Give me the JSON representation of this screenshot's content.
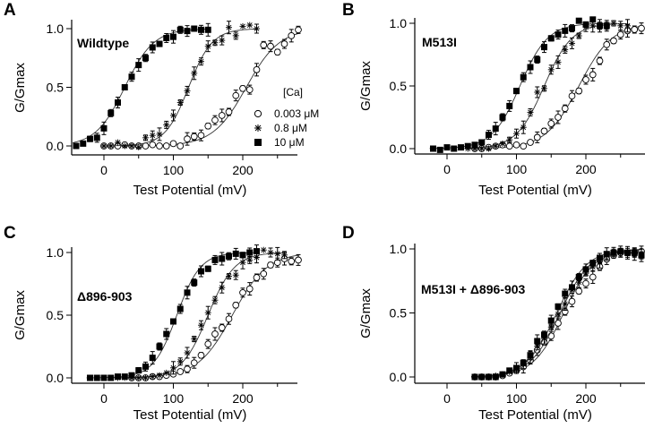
{
  "figure": {
    "legend": {
      "title": "[Ca]",
      "entries": [
        {
          "marker": "open-circle",
          "label": "0.003 μM"
        },
        {
          "marker": "asterisk",
          "label": "0.8 μM"
        },
        {
          "marker": "filled-square",
          "label": "10 μM"
        }
      ]
    }
  },
  "chart_data": [
    {
      "panel": "A",
      "type": "scatter",
      "title": "Wildtype",
      "xlabel": "Test Potential (mV)",
      "ylabel": "G/Gmax",
      "xlim": [
        -45,
        280
      ],
      "ylim": [
        0.0,
        1.0
      ],
      "xticks": [
        0,
        100,
        200
      ],
      "xtick_labels": [
        "0",
        "100",
        "200"
      ],
      "minor_xticks": [
        50,
        150,
        250
      ],
      "yticks": [
        0.0,
        0.5,
        1.0
      ],
      "ytick_labels": [
        "0.0",
        "0.5",
        "1.0"
      ],
      "legend": "right",
      "series": [
        {
          "name": "0.003 μM",
          "marker": "open-circle",
          "fit_v50": 205,
          "fit_k": 24,
          "x": [
            0,
            10,
            20,
            30,
            40,
            50,
            60,
            70,
            80,
            90,
            100,
            110,
            120,
            130,
            140,
            150,
            160,
            170,
            180,
            190,
            200,
            210,
            220,
            230,
            240,
            250,
            260,
            270,
            280
          ],
          "y": [
            0.0,
            0.0,
            0.0,
            0.01,
            0.0,
            0.0,
            0.0,
            0.01,
            0.0,
            0.0,
            0.02,
            0.0,
            0.06,
            0.08,
            0.09,
            0.17,
            0.22,
            0.26,
            0.29,
            0.43,
            0.49,
            0.48,
            0.65,
            0.86,
            0.85,
            0.8,
            0.87,
            0.94,
            0.99
          ]
        },
        {
          "name": "0.8 μM",
          "marker": "asterisk",
          "fit_v50": 122,
          "fit_k": 17,
          "x": [
            0,
            10,
            20,
            30,
            40,
            50,
            60,
            70,
            80,
            90,
            100,
            110,
            120,
            130,
            140,
            150,
            160,
            170,
            180,
            190,
            200,
            210,
            220
          ],
          "y": [
            0.0,
            0.0,
            0.03,
            0.0,
            0.0,
            -0.01,
            0.07,
            0.09,
            0.1,
            0.18,
            0.26,
            0.37,
            0.47,
            0.62,
            0.72,
            0.85,
            0.88,
            0.9,
            1.01,
            0.94,
            1.02,
            1.03,
            1.0
          ]
        },
        {
          "name": "10 μM",
          "marker": "filled-square",
          "fit_v50": 30,
          "fit_k": 21,
          "x": [
            -40,
            -30,
            -20,
            -10,
            0,
            10,
            20,
            30,
            40,
            50,
            60,
            70,
            80,
            90,
            100,
            110,
            120,
            130,
            140,
            150
          ],
          "y": [
            0.0,
            0.02,
            0.06,
            0.07,
            0.15,
            0.28,
            0.37,
            0.5,
            0.59,
            0.69,
            0.75,
            0.84,
            0.87,
            0.92,
            0.93,
            0.99,
            0.98,
            1.0,
            0.99,
            0.99
          ]
        }
      ]
    },
    {
      "panel": "B",
      "type": "scatter",
      "title": "M513I",
      "xlabel": "Test Potential (mV)",
      "ylabel": "G/Gmax",
      "xlim": [
        -45,
        280
      ],
      "ylim": [
        0.0,
        1.0
      ],
      "xticks": [
        0,
        100,
        200
      ],
      "xtick_labels": [
        "0",
        "100",
        "200"
      ],
      "minor_xticks": [
        50,
        150,
        250
      ],
      "yticks": [
        0.0,
        0.5,
        1.0
      ],
      "ytick_labels": [
        "0.0",
        "0.5",
        "1.0"
      ],
      "series": [
        {
          "name": "0.003 μM",
          "marker": "open-circle",
          "fit_v50": 190,
          "fit_k": 24,
          "x": [
            40,
            50,
            60,
            70,
            80,
            90,
            100,
            110,
            120,
            130,
            140,
            150,
            160,
            170,
            180,
            190,
            200,
            210,
            220,
            230,
            240,
            250,
            260,
            270,
            280
          ],
          "y": [
            0.0,
            0.0,
            0.01,
            0.02,
            0.03,
            0.02,
            0.03,
            0.02,
            0.05,
            0.09,
            0.14,
            0.2,
            0.25,
            0.32,
            0.42,
            0.46,
            0.55,
            0.59,
            0.7,
            0.83,
            0.86,
            0.91,
            0.94,
            0.95,
            0.96
          ]
        },
        {
          "name": "0.8 μM",
          "marker": "asterisk",
          "fit_v50": 140,
          "fit_k": 20,
          "x": [
            30,
            40,
            50,
            60,
            70,
            80,
            90,
            100,
            110,
            120,
            130,
            140,
            150,
            160,
            170,
            180,
            190,
            200,
            210,
            220,
            230,
            240,
            250,
            260
          ],
          "y": [
            0.0,
            0.0,
            0.0,
            0.0,
            0.02,
            0.04,
            0.07,
            0.12,
            0.17,
            0.29,
            0.45,
            0.48,
            0.63,
            0.69,
            0.79,
            0.84,
            0.9,
            0.97,
            0.98,
            0.98,
            0.98,
            1.0,
            0.98,
            0.98
          ]
        },
        {
          "name": "10 μM",
          "marker": "filled-square",
          "fit_v50": 105,
          "fit_k": 20,
          "x": [
            -20,
            -10,
            0,
            10,
            20,
            30,
            40,
            50,
            60,
            70,
            80,
            90,
            100,
            110,
            120,
            130,
            140,
            150,
            160,
            170,
            180,
            190,
            200,
            210,
            220,
            230
          ],
          "y": [
            0.0,
            -0.01,
            0.01,
            0.0,
            0.01,
            0.02,
            0.03,
            0.05,
            0.11,
            0.16,
            0.25,
            0.34,
            0.46,
            0.57,
            0.65,
            0.71,
            0.81,
            0.88,
            0.91,
            0.94,
            0.96,
            1.02,
            0.99,
            1.03,
            0.98,
            0.98
          ]
        }
      ]
    },
    {
      "panel": "C",
      "type": "scatter",
      "title": "Δ896-903",
      "xlabel": "Test Potential (mV)",
      "ylabel": "G/Gmax",
      "xlim": [
        -45,
        280
      ],
      "ylim": [
        0.0,
        1.0
      ],
      "xticks": [
        0,
        100,
        200
      ],
      "xtick_labels": [
        "0",
        "100",
        "200"
      ],
      "minor_xticks": [
        50,
        150,
        250
      ],
      "yticks": [
        0.0,
        0.5,
        1.0
      ],
      "ytick_labels": [
        "0.0",
        "0.5",
        "1.0"
      ],
      "series": [
        {
          "name": "0.003 μM",
          "marker": "open-circle",
          "fit_v50": 185,
          "fit_k": 25,
          "x": [
            40,
            50,
            60,
            70,
            80,
            90,
            100,
            110,
            120,
            130,
            140,
            150,
            160,
            170,
            180,
            190,
            200,
            210,
            220,
            230,
            240,
            250,
            260,
            270,
            280
          ],
          "y": [
            0.0,
            0.0,
            0.0,
            0.01,
            0.01,
            0.02,
            0.03,
            0.05,
            0.07,
            0.12,
            0.18,
            0.27,
            0.35,
            0.4,
            0.47,
            0.58,
            0.68,
            0.71,
            0.8,
            0.83,
            0.9,
            0.92,
            0.95,
            0.93,
            0.94
          ]
        },
        {
          "name": "0.8 μM",
          "marker": "asterisk",
          "fit_v50": 150,
          "fit_k": 19,
          "x": [
            20,
            30,
            40,
            50,
            60,
            70,
            80,
            90,
            100,
            110,
            120,
            130,
            140,
            150,
            160,
            170,
            180,
            190,
            200,
            210,
            220,
            230,
            240,
            250,
            260
          ],
          "y": [
            0.0,
            0.0,
            0.0,
            0.0,
            0.0,
            0.01,
            0.02,
            0.04,
            0.08,
            0.13,
            0.2,
            0.31,
            0.42,
            0.52,
            0.62,
            0.72,
            0.81,
            0.82,
            0.92,
            0.94,
            0.96,
            1.02,
            1.0,
            0.99,
            0.98
          ]
        },
        {
          "name": "10 μM",
          "marker": "filled-square",
          "fit_v50": 105,
          "fit_k": 17,
          "x": [
            -20,
            -10,
            0,
            10,
            20,
            30,
            40,
            50,
            60,
            70,
            80,
            90,
            100,
            110,
            120,
            130,
            140,
            150,
            160,
            170,
            180,
            190,
            200,
            210,
            220
          ],
          "y": [
            0.0,
            0.0,
            0.0,
            0.0,
            0.01,
            0.01,
            0.02,
            0.06,
            0.09,
            0.16,
            0.25,
            0.35,
            0.45,
            0.55,
            0.68,
            0.76,
            0.85,
            0.87,
            0.94,
            0.95,
            0.97,
            0.99,
            0.98,
            1.0,
            1.01
          ]
        }
      ]
    },
    {
      "panel": "D",
      "type": "scatter",
      "title": "M513I + Δ896-903",
      "xlabel": "Test Potential (mV)",
      "ylabel": "G/Gmax",
      "xlim": [
        -45,
        280
      ],
      "ylim": [
        0.0,
        1.0
      ],
      "xticks": [
        0,
        100,
        200
      ],
      "xtick_labels": [
        "0",
        "100",
        "200"
      ],
      "minor_xticks": [
        50,
        150,
        250
      ],
      "yticks": [
        0.0,
        0.5,
        1.0
      ],
      "ytick_labels": [
        "0.0",
        "0.5",
        "1.0"
      ],
      "series": [
        {
          "name": "0.003 μM",
          "marker": "open-circle",
          "fit_v50": 168,
          "fit_k": 22,
          "x": [
            40,
            50,
            60,
            70,
            80,
            90,
            100,
            110,
            120,
            130,
            140,
            150,
            160,
            170,
            180,
            190,
            200,
            210,
            220,
            230,
            240,
            250,
            260,
            270,
            280
          ],
          "y": [
            0.0,
            0.0,
            0.0,
            0.0,
            0.01,
            0.03,
            0.05,
            0.08,
            0.13,
            0.21,
            0.27,
            0.32,
            0.42,
            0.51,
            0.59,
            0.67,
            0.73,
            0.78,
            0.86,
            0.92,
            0.95,
            0.97,
            0.97,
            0.97,
            0.98
          ]
        },
        {
          "name": "0.8 μM",
          "marker": "asterisk",
          "fit_v50": 163,
          "fit_k": 22,
          "x": [
            40,
            50,
            60,
            70,
            80,
            90,
            100,
            110,
            120,
            130,
            140,
            150,
            160,
            170,
            180,
            190,
            200,
            210,
            220,
            230,
            240,
            250,
            260,
            270,
            280
          ],
          "y": [
            0.0,
            0.0,
            0.0,
            0.01,
            0.02,
            0.04,
            0.06,
            0.1,
            0.15,
            0.24,
            0.3,
            0.39,
            0.49,
            0.57,
            0.68,
            0.74,
            0.81,
            0.86,
            0.9,
            0.95,
            0.97,
            0.98,
            0.97,
            0.96,
            0.95
          ]
        },
        {
          "name": "10 μM",
          "marker": "filled-square",
          "fit_v50": 158,
          "fit_k": 22,
          "x": [
            40,
            50,
            60,
            70,
            80,
            90,
            100,
            110,
            120,
            130,
            140,
            150,
            160,
            170,
            180,
            190,
            200,
            210,
            220,
            230,
            240,
            250,
            260,
            270,
            280
          ],
          "y": [
            0.0,
            0.0,
            0.0,
            0.0,
            0.02,
            0.05,
            0.07,
            0.11,
            0.17,
            0.28,
            0.33,
            0.44,
            0.55,
            0.65,
            0.7,
            0.78,
            0.84,
            0.89,
            0.93,
            0.96,
            0.97,
            0.98,
            0.97,
            0.97,
            0.95
          ]
        }
      ]
    }
  ]
}
